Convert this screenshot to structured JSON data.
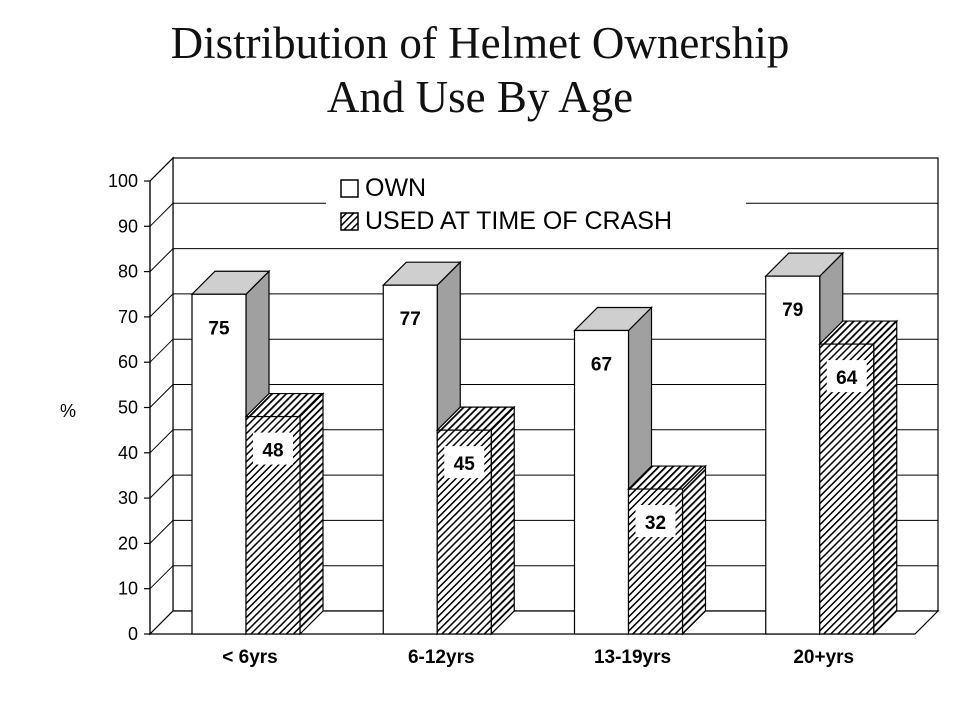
{
  "chart_data": {
    "type": "bar",
    "title_line1": "Distribution of Helmet Ownership",
    "title_line2": "And Use By Age",
    "ylabel": "%",
    "xlabel": "",
    "ylim": [
      0,
      100
    ],
    "yticks": [
      "0",
      "10",
      "20",
      "30",
      "40",
      "50",
      "60",
      "70",
      "80",
      "90",
      "100"
    ],
    "grid": true,
    "legend_position": "top",
    "categories": [
      "< 6yrs",
      "6-12yrs",
      "13-19yrs",
      "20+yrs"
    ],
    "series": [
      {
        "name": "OWN",
        "values": [
          75,
          77,
          67,
          79
        ],
        "labels": [
          "75",
          "77",
          "67",
          "79"
        ],
        "color": "#ffffff"
      },
      {
        "name": "USED AT TIME OF CRASH",
        "values": [
          48,
          45,
          32,
          64
        ],
        "labels": [
          "48",
          "45",
          "32",
          "64"
        ],
        "color": "#111111"
      }
    ],
    "style": {
      "three_d": true,
      "side_color": "#a0a0a0",
      "top_color": "#cfcfcf",
      "hatch": "diagonal"
    }
  }
}
